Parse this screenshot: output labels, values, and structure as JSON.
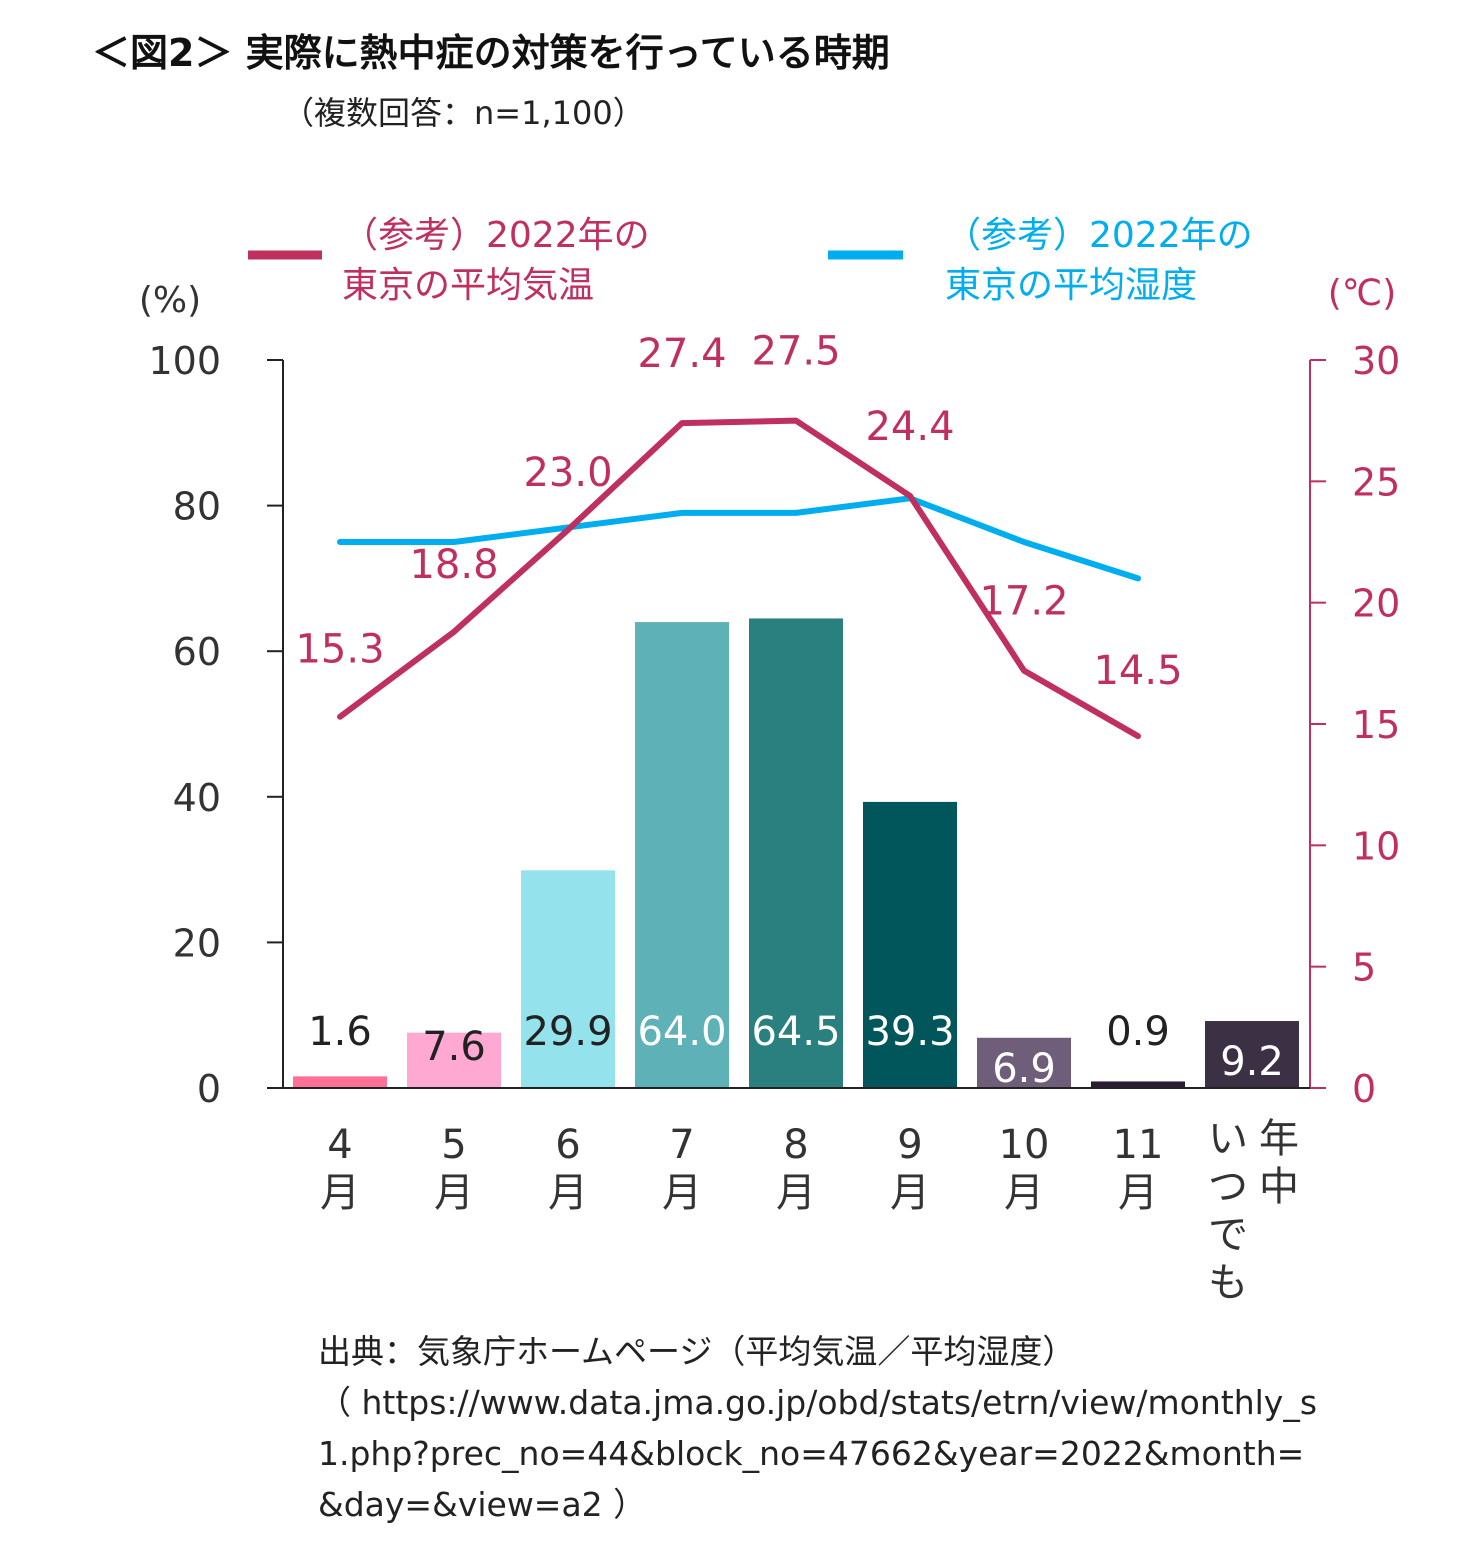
{
  "title": "＜図2＞ 実際に熱中症の対策を行っている時期",
  "subtitle": "（複数回答：n=1,100）",
  "chart_data": {
    "type": "bar",
    "categories": [
      {
        "lines": [
          "4",
          "月"
        ]
      },
      {
        "lines": [
          "5",
          "月"
        ]
      },
      {
        "lines": [
          "6",
          "月"
        ]
      },
      {
        "lines": [
          "7",
          "月"
        ]
      },
      {
        "lines": [
          "8",
          "月"
        ]
      },
      {
        "lines": [
          "9",
          "月"
        ]
      },
      {
        "lines": [
          "10",
          "月"
        ]
      },
      {
        "lines": [
          "11",
          "月"
        ]
      },
      {
        "vertical": true,
        "cols": [
          "年中",
          "いつでも"
        ]
      }
    ],
    "bar_values": [
      1.6,
      7.6,
      29.9,
      64.0,
      64.5,
      39.3,
      6.9,
      0.9,
      9.2
    ],
    "bar_labels": [
      "1.6",
      "7.6",
      "29.9",
      "64.0",
      "64.5",
      "39.3",
      "6.9",
      "0.9",
      "9.2"
    ],
    "bar_colors": [
      "#ff7096",
      "#ffa8d2",
      "#94e3ec",
      "#5fb1b8",
      "#29807f",
      "#00565b",
      "#6e5e7a",
      "#2c1c33",
      "#3c3045"
    ],
    "bar_label_colors": [
      "#222222",
      "#222222",
      "#222222",
      "#ffffff",
      "#ffffff",
      "#ffffff",
      "#ffffff",
      "#222222",
      "#ffffff"
    ],
    "bar_label_inside": [
      false,
      true,
      true,
      true,
      true,
      true,
      true,
      false,
      true
    ],
    "y_left": {
      "label": "(%)",
      "min": 0,
      "max": 100,
      "ticks": [
        0,
        20,
        40,
        60,
        80,
        100
      ]
    },
    "y_right": {
      "label": "(℃)",
      "min": 0,
      "max": 30,
      "ticks": [
        0,
        5,
        10,
        15,
        20,
        25,
        30
      ]
    },
    "temperature": {
      "name": "（参考）2022年の\n東京の平均気温",
      "name_lines": [
        "（参考）2022年の",
        "東京の平均気温"
      ],
      "color": "#c0305f",
      "values": [
        15.3,
        18.8,
        23.0,
        27.4,
        27.5,
        24.4,
        17.2,
        14.5
      ],
      "labels": [
        "15.3",
        "18.8",
        "23.0",
        "27.4",
        "27.5",
        "24.4",
        "17.2",
        "14.5"
      ]
    },
    "humidity": {
      "name": "（参考）2022年の\n東京の平均湿度",
      "name_lines": [
        "（参考）2022年の",
        "東京の平均湿度"
      ],
      "color": "#00aeef",
      "values": [
        75,
        75,
        77,
        79,
        79,
        81,
        75,
        70
      ]
    },
    "axis_color": "#222222",
    "right_axis_color": "#c0305f"
  },
  "source": {
    "label": "出典：気象庁ホームページ（平均気温／平均湿度）",
    "url": "（ https://www.data.jma.go.jp/obd/stats/etrn/view/monthly_s1.php?prec_no=44&block_no=47662&year=2022&month=&day=&view=a2 ）"
  }
}
